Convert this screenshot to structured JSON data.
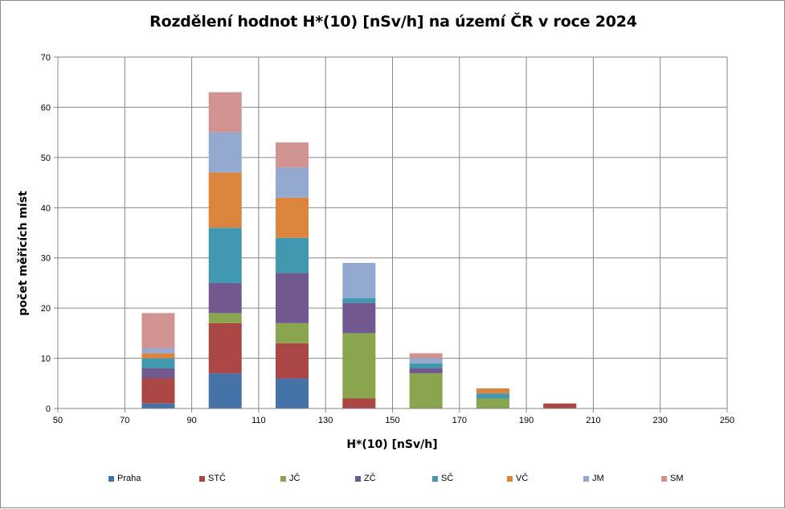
{
  "chart_data": {
    "type": "bar",
    "stacked": true,
    "title": "Rozdělení hodnot H*(10)  [nSv/h] na území ČR v roce 2024",
    "xlabel": "H*(10) [nSv/h]",
    "ylabel": "počet měřicích míst",
    "x": [
      80,
      100,
      120,
      140,
      160,
      180,
      200
    ],
    "xlim": [
      50,
      250
    ],
    "xticks": [
      "50",
      "70",
      "90",
      "110",
      "130",
      "150",
      "170",
      "190",
      "210",
      "230",
      "250"
    ],
    "ylim": [
      0,
      70
    ],
    "yticks": [
      "0",
      "10",
      "20",
      "30",
      "40",
      "50",
      "60",
      "70"
    ],
    "grid": true,
    "legend_position": "bottom",
    "series": [
      {
        "name": "Praha",
        "color": "#4572a7",
        "values": [
          1,
          7,
          6,
          0,
          0,
          0,
          0
        ]
      },
      {
        "name": "STČ",
        "color": "#aa4643",
        "values": [
          5,
          10,
          7,
          2,
          0,
          0,
          1
        ]
      },
      {
        "name": "JČ",
        "color": "#89a54e",
        "values": [
          0,
          2,
          4,
          13,
          7,
          2,
          0
        ]
      },
      {
        "name": "ZČ",
        "color": "#71588f",
        "values": [
          2,
          6,
          10,
          6,
          1,
          0,
          0
        ]
      },
      {
        "name": "SČ",
        "color": "#4198af",
        "values": [
          2,
          11,
          7,
          1,
          1,
          1,
          0
        ]
      },
      {
        "name": "VČ",
        "color": "#db843d",
        "values": [
          1,
          11,
          8,
          0,
          0,
          1,
          0
        ]
      },
      {
        "name": "JM",
        "color": "#93a9cf",
        "values": [
          1,
          8,
          6,
          7,
          1,
          0,
          0
        ]
      },
      {
        "name": "SM",
        "color": "#d19392",
        "values": [
          7,
          8,
          5,
          0,
          1,
          0,
          0
        ]
      }
    ]
  }
}
